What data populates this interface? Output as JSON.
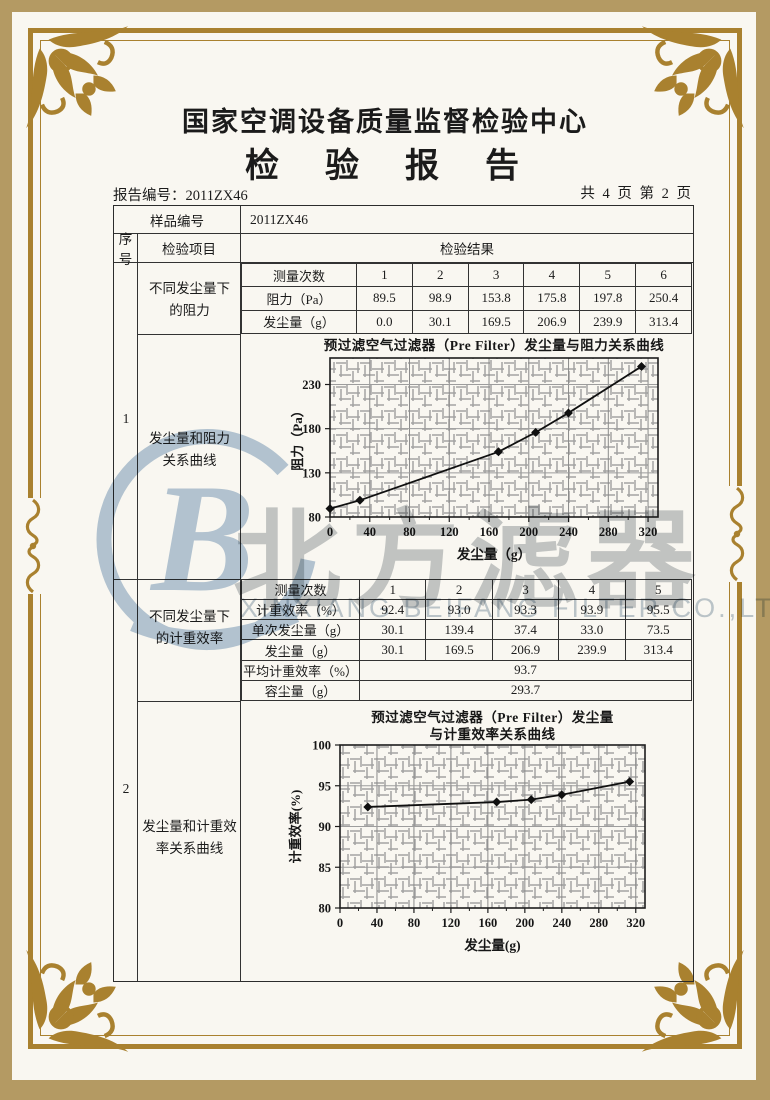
{
  "header": {
    "center_name": "国家空调设备质量监督检验中心",
    "report_title": "检　验　报　告",
    "report_no": "报告编号：2011ZX46",
    "page_info": "共 4 页 第 2 页"
  },
  "main_table": {
    "sample_label": "样品编号",
    "sample_value": "2011ZX46",
    "col_seq": "序号",
    "col_item": "检验项目",
    "col_result": "检验结果",
    "s1_seq": "1",
    "s1_item1": [
      "不同发尘量下",
      "的阻力"
    ],
    "s1_item2": [
      "发尘量和阻力",
      "关系曲线"
    ],
    "s2_seq": "2",
    "s2_item1": [
      "不同发尘量下",
      "的计重效率"
    ],
    "s2_item2": [
      "发尘量和计重效",
      "率关系曲线"
    ]
  },
  "resistance_table": {
    "header": [
      "测量次数",
      "1",
      "2",
      "3",
      "4",
      "5",
      "6"
    ],
    "rows": [
      [
        "阻力（Pa）",
        "89.5",
        "98.9",
        "153.8",
        "175.8",
        "197.8",
        "250.4"
      ],
      [
        "发尘量（g）",
        "0.0",
        "30.1",
        "169.5",
        "206.9",
        "239.9",
        "313.4"
      ]
    ]
  },
  "efficiency_table": {
    "header": [
      "测量次数",
      "1",
      "2",
      "3",
      "4",
      "5"
    ],
    "rows": [
      [
        "计重效率（%）",
        "92.4",
        "93.0",
        "93.3",
        "93.9",
        "95.5"
      ],
      [
        "单次发尘量（g）",
        "30.1",
        "139.4",
        "37.4",
        "33.0",
        "73.5"
      ],
      [
        "发尘量（g）",
        "30.1",
        "169.5",
        "206.9",
        "239.9",
        "313.4"
      ]
    ],
    "avg_label": "平均计重效率（%）",
    "avg_value": "93.7",
    "cap_label": "容尘量（g）",
    "cap_value": "293.7"
  },
  "watermark": {
    "logo_letter": "B",
    "cn": "北方滤器",
    "en": "XINXIANG BEIFANG FILTER CO.,LTD."
  },
  "colors": {
    "frame_gold": "#a9812f",
    "outer_tan": "#b49a63",
    "paper": "#f9f7f1",
    "watermark_blue": "#b6c9db",
    "watermark_gray": "#c6cacc"
  },
  "chart_data": [
    {
      "type": "line",
      "title": "预过滤空气过滤器（Pre Filter）发尘量与阻力关系曲线",
      "xlabel": "发尘量（g）",
      "ylabel": "阻力（Pa）",
      "x": [
        0,
        30.1,
        169.5,
        206.9,
        239.9,
        313.4
      ],
      "y": [
        89.5,
        98.9,
        153.8,
        175.8,
        197.8,
        250.4
      ],
      "xlim": [
        0,
        330
      ],
      "ylim": [
        80,
        260
      ],
      "xticks": [
        0,
        40,
        80,
        120,
        160,
        200,
        240,
        280,
        320
      ],
      "yticks": [
        80,
        130,
        180,
        230
      ],
      "grid": true,
      "legend": "none",
      "marker": "diamond"
    },
    {
      "type": "line",
      "title": "预过滤空气过滤器（Pre Filter）发尘量",
      "title2": "与计重效率关系曲线",
      "xlabel": "发尘量(g)",
      "ylabel": "计重效率(%)",
      "x": [
        30.1,
        169.5,
        206.9,
        239.9,
        313.4
      ],
      "y": [
        92.4,
        93.0,
        93.3,
        93.9,
        95.5
      ],
      "xlim": [
        0,
        330
      ],
      "ylim": [
        80,
        100
      ],
      "xticks": [
        0,
        40,
        80,
        120,
        160,
        200,
        240,
        280,
        320
      ],
      "yticks": [
        80,
        85,
        90,
        95,
        100
      ],
      "grid": true,
      "legend": "none",
      "marker": "diamond"
    }
  ]
}
